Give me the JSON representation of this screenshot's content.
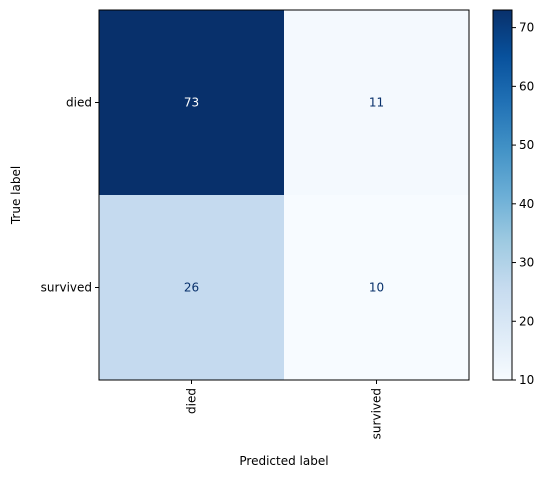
{
  "chart_data": {
    "type": "heatmap",
    "row_labels": [
      "died",
      "survived"
    ],
    "col_labels": [
      "died",
      "survived"
    ],
    "values": [
      [
        73,
        11
      ],
      [
        26,
        10
      ]
    ],
    "xlabel": "Predicted label",
    "ylabel": "True label",
    "colorbar": {
      "min": 10,
      "max": 73,
      "ticks": [
        10,
        20,
        30,
        40,
        50,
        60,
        70
      ],
      "colormap": "Blues"
    },
    "colors": {
      "dark_text": "#08306b",
      "light_text": "#ffffff"
    }
  }
}
